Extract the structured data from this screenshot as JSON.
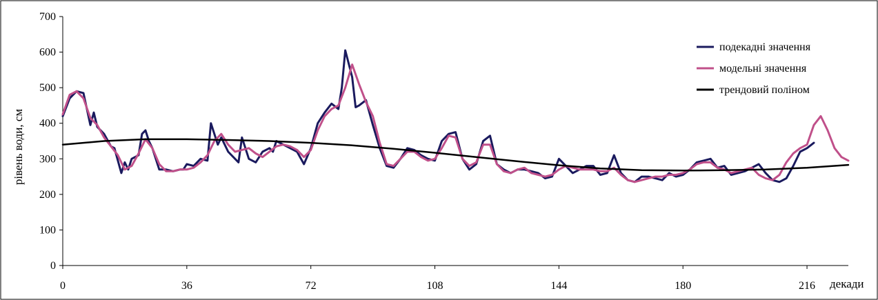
{
  "chart_data": {
    "type": "line",
    "title": "",
    "xlabel": "декади",
    "ylabel": "рівень води, см",
    "xlim": [
      0,
      228
    ],
    "ylim": [
      0,
      700
    ],
    "xticks": [
      0,
      36,
      72,
      108,
      144,
      180,
      216
    ],
    "yticks": [
      0,
      100,
      200,
      300,
      400,
      500,
      600,
      700
    ],
    "grid": false,
    "legend_position": "top-right",
    "series": [
      {
        "name": "подекадні значення",
        "color": "#1a1a5e",
        "x": [
          0,
          2,
          4,
          6,
          8,
          9,
          10,
          12,
          14,
          15,
          16,
          17,
          18,
          19,
          20,
          22,
          23,
          24,
          25,
          26,
          27,
          28,
          30,
          32,
          34,
          35,
          36,
          38,
          40,
          42,
          43,
          44,
          45,
          46,
          48,
          50,
          51,
          52,
          54,
          56,
          58,
          60,
          61,
          62,
          64,
          66,
          68,
          70,
          72,
          74,
          76,
          78,
          80,
          81,
          82,
          84,
          85,
          86,
          88,
          90,
          92,
          94,
          96,
          98,
          100,
          102,
          104,
          106,
          108,
          110,
          112,
          114,
          116,
          118,
          120,
          122,
          124,
          126,
          128,
          130,
          132,
          134,
          136,
          138,
          140,
          142,
          144,
          146,
          148,
          150,
          152,
          154,
          156,
          158,
          160,
          162,
          164,
          166,
          168,
          170,
          172,
          174,
          176,
          178,
          180,
          182,
          184,
          186,
          188,
          190,
          192,
          194,
          196,
          198,
          200,
          202,
          204,
          206,
          208,
          210,
          212,
          214,
          216,
          218
        ],
        "values": [
          420,
          470,
          490,
          485,
          395,
          430,
          390,
          370,
          335,
          330,
          295,
          260,
          290,
          270,
          300,
          310,
          370,
          380,
          350,
          330,
          300,
          270,
          270,
          265,
          270,
          270,
          285,
          280,
          300,
          295,
          400,
          370,
          340,
          360,
          320,
          300,
          290,
          360,
          300,
          290,
          320,
          330,
          320,
          350,
          340,
          330,
          320,
          285,
          330,
          400,
          430,
          455,
          440,
          500,
          605,
          530,
          445,
          450,
          465,
          395,
          330,
          280,
          275,
          300,
          330,
          325,
          310,
          300,
          295,
          350,
          370,
          375,
          300,
          270,
          285,
          350,
          365,
          285,
          270,
          260,
          270,
          270,
          265,
          260,
          245,
          250,
          300,
          280,
          260,
          270,
          280,
          280,
          255,
          260,
          310,
          260,
          240,
          235,
          250,
          250,
          245,
          240,
          260,
          250,
          255,
          270,
          290,
          295,
          300,
          275,
          280,
          255,
          260,
          265,
          275,
          285,
          260,
          240,
          235,
          245,
          280,
          320,
          330,
          345
        ]
      },
      {
        "name": "модельні значення",
        "color": "#c0508a",
        "x": [
          0,
          2,
          4,
          6,
          8,
          10,
          12,
          14,
          16,
          18,
          20,
          22,
          24,
          26,
          28,
          30,
          32,
          34,
          36,
          38,
          40,
          42,
          44,
          46,
          48,
          50,
          52,
          54,
          56,
          58,
          60,
          62,
          64,
          66,
          68,
          70,
          72,
          74,
          76,
          78,
          80,
          82,
          84,
          86,
          88,
          90,
          92,
          94,
          96,
          98,
          100,
          102,
          104,
          106,
          108,
          110,
          112,
          114,
          116,
          118,
          120,
          122,
          124,
          126,
          128,
          130,
          132,
          134,
          136,
          138,
          140,
          142,
          144,
          146,
          148,
          150,
          152,
          154,
          156,
          158,
          160,
          162,
          164,
          166,
          168,
          170,
          172,
          174,
          176,
          178,
          180,
          182,
          184,
          186,
          188,
          190,
          192,
          194,
          196,
          198,
          200,
          202,
          204,
          206,
          208,
          210,
          212,
          214,
          216,
          218,
          220,
          222,
          224,
          226,
          228
        ],
        "values": [
          425,
          480,
          490,
          470,
          415,
          395,
          360,
          335,
          310,
          270,
          280,
          315,
          355,
          330,
          285,
          265,
          265,
          270,
          270,
          275,
          290,
          310,
          350,
          370,
          340,
          320,
          325,
          330,
          315,
          305,
          320,
          335,
          340,
          335,
          325,
          305,
          325,
          380,
          420,
          440,
          450,
          500,
          565,
          510,
          460,
          420,
          345,
          285,
          280,
          300,
          320,
          320,
          305,
          295,
          300,
          330,
          365,
          360,
          300,
          280,
          290,
          340,
          340,
          285,
          265,
          260,
          270,
          275,
          260,
          255,
          250,
          255,
          270,
          280,
          275,
          270,
          270,
          270,
          265,
          265,
          275,
          255,
          240,
          235,
          240,
          245,
          250,
          250,
          255,
          255,
          260,
          270,
          285,
          290,
          290,
          275,
          270,
          260,
          265,
          270,
          275,
          255,
          245,
          240,
          255,
          290,
          315,
          330,
          340,
          395,
          420,
          380,
          330,
          305,
          295
        ]
      },
      {
        "name": "трендовий поліном",
        "color": "#000000",
        "x": [
          0,
          12,
          24,
          36,
          48,
          60,
          72,
          84,
          96,
          108,
          120,
          132,
          144,
          156,
          168,
          180,
          192,
          204,
          216,
          228
        ],
        "values": [
          340,
          350,
          355,
          355,
          353,
          350,
          345,
          338,
          328,
          317,
          305,
          293,
          282,
          273,
          268,
          267,
          268,
          270,
          275,
          283
        ]
      }
    ]
  }
}
